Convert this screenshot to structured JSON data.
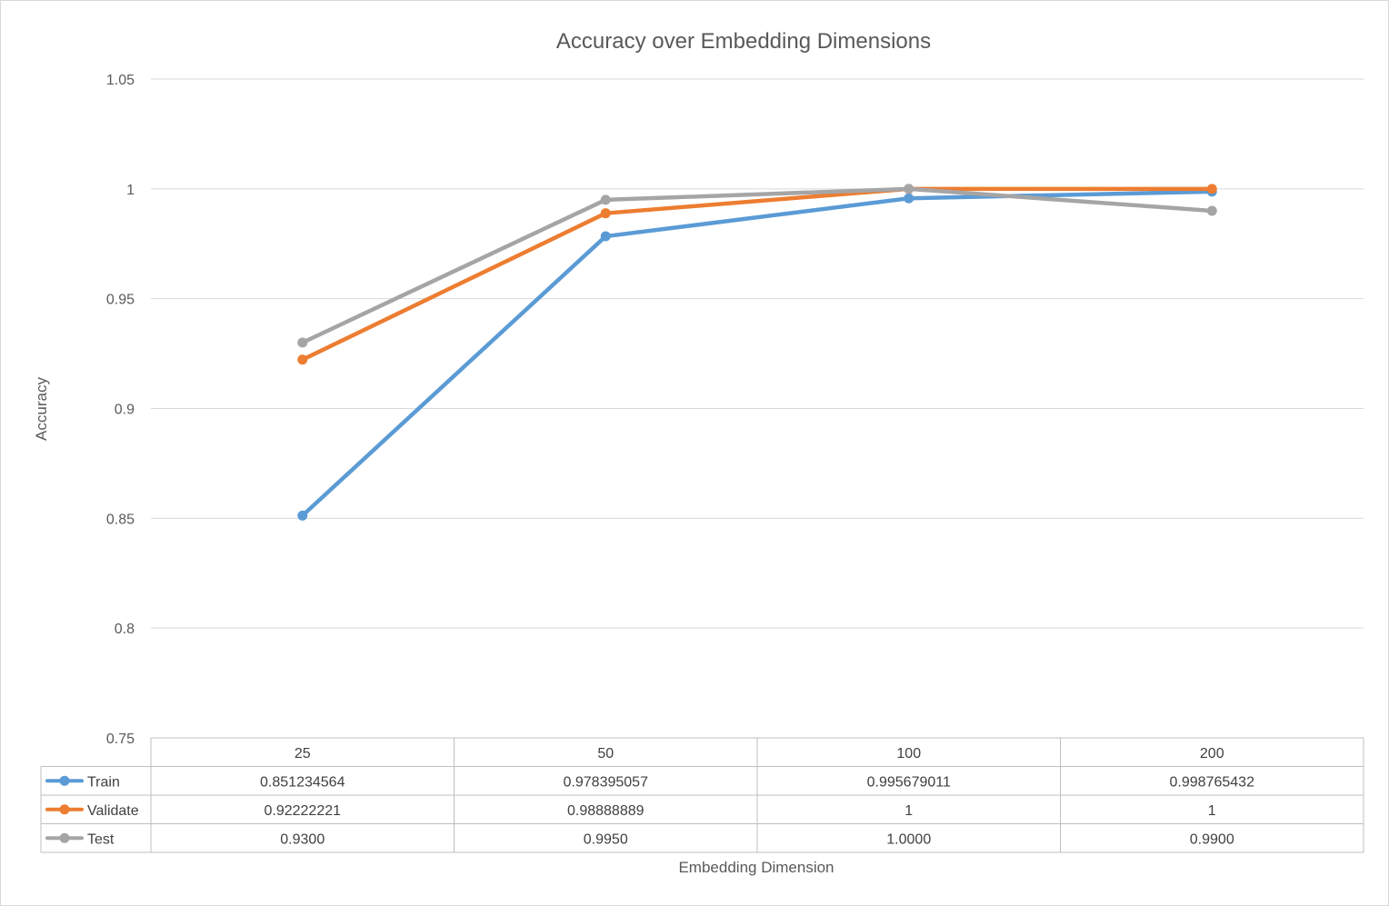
{
  "chart_data": {
    "type": "line",
    "title": "Accuracy over Embedding Dimensions",
    "xlabel": "Embedding Dimension",
    "ylabel": "Accuracy",
    "categories": [
      "25",
      "50",
      "100",
      "200"
    ],
    "ylim": [
      0.75,
      1.05
    ],
    "yticks": [
      "0.75",
      "0.8",
      "0.85",
      "0.9",
      "0.95",
      "1",
      "1.05"
    ],
    "grid": true,
    "legend": "data-table",
    "series": [
      {
        "name": "Train",
        "color": "#5b9bd5",
        "values": [
          0.851234564,
          0.978395057,
          0.995679011,
          0.998765432
        ],
        "labels": [
          "0.851234564",
          "0.978395057",
          "0.995679011",
          "0.998765432"
        ]
      },
      {
        "name": "Validate",
        "color": "#ed7d31",
        "values": [
          0.92222221,
          0.98888889,
          1,
          1
        ],
        "labels": [
          "0.92222221",
          "0.98888889",
          "1",
          "1"
        ]
      },
      {
        "name": "Test",
        "color": "#a5a5a5",
        "values": [
          0.93,
          0.995,
          1.0,
          0.99
        ],
        "labels": [
          "0.9300",
          "0.9950",
          "1.0000",
          "0.9900"
        ]
      }
    ]
  }
}
